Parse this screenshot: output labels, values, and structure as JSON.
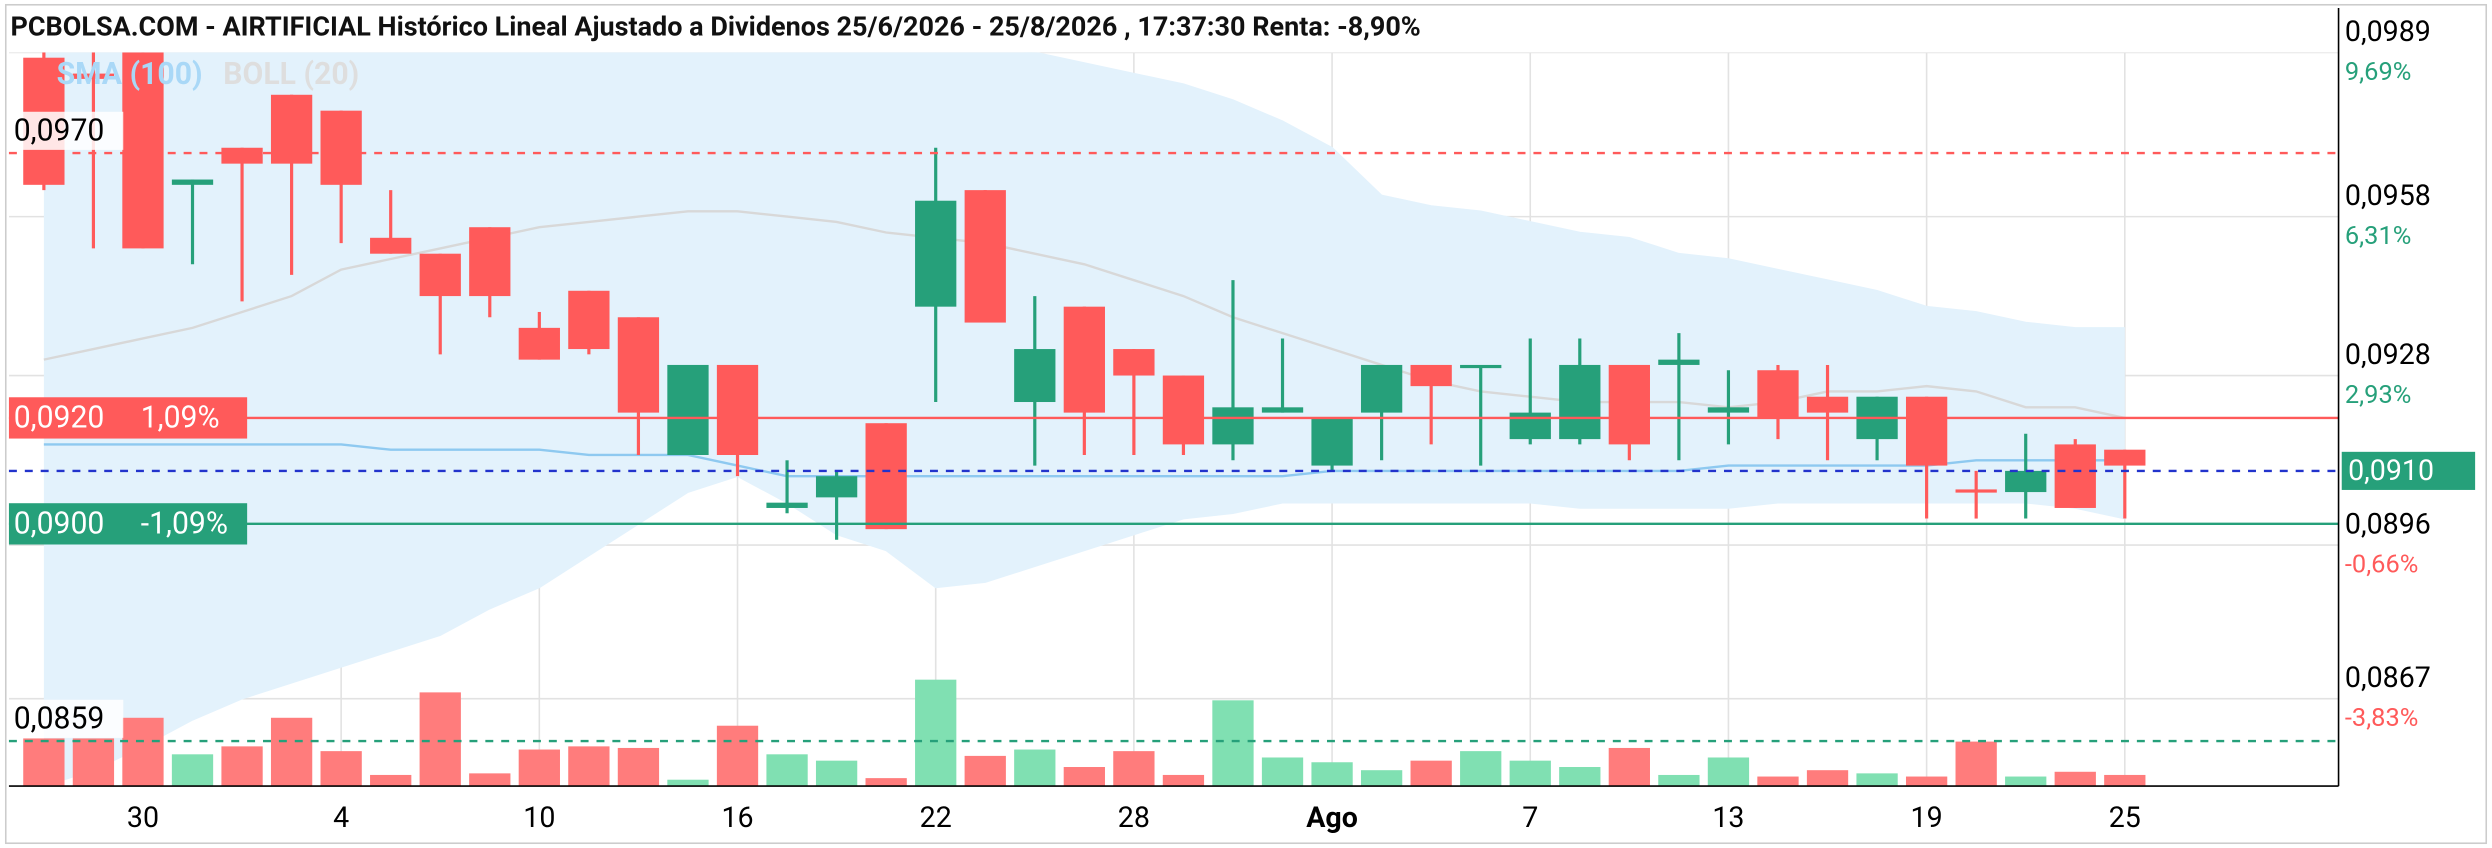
{
  "chart_data": {
    "type": "candlestick",
    "title": "PCBOLSA.COM - AIRTIFICIAL Histórico Lineal Ajustado a Dividenos 25/6/2026 - 25/8/2026 , 17:37:30 Renta: -8,90%",
    "categories": [
      null,
      null,
      "30",
      null,
      null,
      null,
      "4",
      null,
      null,
      null,
      "10",
      null,
      null,
      null,
      "16",
      null,
      null,
      null,
      "22",
      null,
      null,
      null,
      "28",
      null,
      null,
      null,
      "Ago",
      null,
      null,
      null,
      "7",
      null,
      null,
      null,
      "13",
      null,
      null,
      null,
      "19",
      null,
      null,
      null,
      "25"
    ],
    "open": [
      0.0988,
      0.0985,
      0.0989,
      0.0964,
      0.0971,
      0.0981,
      0.0978,
      0.0954,
      0.0951,
      0.0956,
      0.0937,
      0.0944,
      0.0939,
      0.0913,
      0.093,
      0.0903,
      0.0905,
      0.0919,
      0.0941,
      0.0963,
      0.0923,
      0.0941,
      0.0933,
      0.0928,
      0.0915,
      0.0921,
      0.0911,
      0.0921,
      0.093,
      0.09295,
      0.0916,
      0.0916,
      0.093,
      0.093,
      0.0921,
      0.0929,
      0.0924,
      0.0916,
      0.0924,
      0.09065,
      0.0906,
      0.0915,
      0.0914
    ],
    "high": [
      0.0989,
      0.0989,
      0.0989,
      0.0965,
      0.0971,
      0.0981,
      0.0978,
      0.0963,
      0.0951,
      0.0956,
      0.094,
      0.0944,
      0.0939,
      0.093,
      0.093,
      0.0912,
      0.091,
      0.0919,
      0.0971,
      0.0963,
      0.0943,
      0.0941,
      0.0933,
      0.0928,
      0.0946,
      0.0935,
      0.092,
      0.093,
      0.093,
      0.093,
      0.0935,
      0.0935,
      0.093,
      0.0936,
      0.0929,
      0.093,
      0.093,
      0.0924,
      0.0924,
      0.091,
      0.0917,
      0.0916,
      0.0914
    ],
    "low": [
      0.0963,
      0.0952,
      0.0952,
      0.0949,
      0.0942,
      0.0947,
      0.0953,
      0.0951,
      0.0932,
      0.0939,
      0.0931,
      0.0932,
      0.0913,
      0.0913,
      0.0909,
      0.0902,
      0.0897,
      0.0899,
      0.0923,
      0.0938,
      0.0911,
      0.0913,
      0.0913,
      0.0913,
      0.0912,
      0.0921,
      0.091,
      0.0912,
      0.0915,
      0.0911,
      0.0915,
      0.0915,
      0.0912,
      0.0912,
      0.0915,
      0.0916,
      0.0912,
      0.0912,
      0.0901,
      0.0901,
      0.0901,
      0.0903,
      0.0901
    ],
    "close": [
      0.0964,
      0.0984,
      0.0952,
      0.0965,
      0.0968,
      0.0968,
      0.0964,
      0.0951,
      0.0943,
      0.0943,
      0.0931,
      0.0933,
      0.0921,
      0.093,
      0.0913,
      0.0904,
      0.0909,
      0.0899,
      0.0961,
      0.0938,
      0.0933,
      0.0921,
      0.0928,
      0.0915,
      0.0922,
      0.0922,
      0.092,
      0.093,
      0.0926,
      0.093,
      0.0921,
      0.093,
      0.0915,
      0.0931,
      0.0922,
      0.092,
      0.0921,
      0.0924,
      0.0911,
      0.0906,
      0.091,
      0.0903,
      0.0911
    ],
    "volume": [
      30,
      30,
      43,
      20,
      25,
      43,
      22,
      7,
      59,
      8,
      23,
      25,
      24,
      4,
      38,
      20,
      16,
      5,
      67,
      19,
      23,
      12,
      22,
      7,
      54,
      18,
      15,
      10,
      16,
      22,
      16,
      12,
      24,
      7,
      18,
      6,
      10,
      8,
      6,
      28,
      6,
      9,
      7
    ],
    "up_color": "#26a07a",
    "down_color": "#ff5a5a",
    "volume_up_color": "#80e0b2",
    "volume_down_color": "#ff7c7c",
    "overlays": [
      {
        "name": "SMA (100)",
        "color": "#8ec9f0",
        "values": [
          0.0915,
          0.0915,
          0.0915,
          0.0915,
          0.0915,
          0.0915,
          0.0915,
          0.0914,
          0.0914,
          0.0914,
          0.0914,
          0.0913,
          0.0913,
          0.0913,
          0.0911,
          0.0909,
          0.0909,
          0.0909,
          0.0909,
          0.0909,
          0.0909,
          0.0909,
          0.0909,
          0.0909,
          0.0909,
          0.0909,
          0.091,
          0.091,
          0.091,
          0.091,
          0.091,
          0.091,
          0.091,
          0.091,
          0.0911,
          0.0911,
          0.0911,
          0.0911,
          0.0911,
          0.0912,
          0.0912,
          0.0912,
          0.0912
        ]
      },
      {
        "name": "BOLL (20)",
        "color": "#d8d8d8",
        "fill": "#e3f2fc",
        "upper": [
          0.0995,
          0.0995,
          0.0995,
          0.0995,
          0.0995,
          0.0995,
          0.0995,
          0.0995,
          0.0995,
          0.0995,
          0.0995,
          0.0995,
          0.0995,
          0.0995,
          0.0995,
          0.0995,
          0.0995,
          0.0995,
          0.0992,
          0.099,
          0.0989,
          0.0987,
          0.0985,
          0.0983,
          0.098,
          0.0976,
          0.0971,
          0.0962,
          0.096,
          0.0959,
          0.0957,
          0.0955,
          0.0954,
          0.0951,
          0.095,
          0.0948,
          0.0946,
          0.0944,
          0.0941,
          0.094,
          0.0938,
          0.0937,
          0.0937
        ],
        "middle": [
          0.0931,
          0.0933,
          0.0935,
          0.0937,
          0.094,
          0.0943,
          0.0948,
          0.095,
          0.0952,
          0.0954,
          0.0956,
          0.0957,
          0.0958,
          0.0959,
          0.0959,
          0.0958,
          0.0957,
          0.0955,
          0.0954,
          0.0953,
          0.0951,
          0.0949,
          0.0946,
          0.0943,
          0.0939,
          0.0936,
          0.0933,
          0.093,
          0.0927,
          0.0925,
          0.0924,
          0.0923,
          0.0923,
          0.0923,
          0.0922,
          0.0923,
          0.0925,
          0.0925,
          0.0926,
          0.0925,
          0.0922,
          0.0922,
          0.092
        ],
        "lower": [
          0.08505,
          0.08535,
          0.0858,
          0.0863,
          0.0867,
          0.087,
          0.0873,
          0.0876,
          0.0879,
          0.0884,
          0.0888,
          0.0894,
          0.09,
          0.0906,
          0.0909,
          0.0904,
          0.0898,
          0.0895,
          0.0888,
          0.0889,
          0.0892,
          0.0895,
          0.0898,
          0.0901,
          0.0902,
          0.0904,
          0.0904,
          0.0904,
          0.0904,
          0.0904,
          0.0904,
          0.0903,
          0.0903,
          0.0903,
          0.0903,
          0.0904,
          0.0904,
          0.0904,
          0.0904,
          0.0904,
          0.0904,
          0.0903,
          0.0901
        ]
      }
    ],
    "ylim": [
      0.08505,
      0.0989
    ],
    "yticks": [
      {
        "value": 0.0989,
        "label": "0,0989"
      },
      {
        "value": 0.0958,
        "label": "0,0958"
      },
      {
        "value": 0.0928,
        "label": "0,0928"
      },
      {
        "value": 0.0896,
        "label": "0,0896"
      },
      {
        "value": 0.0867,
        "label": "0,0867"
      }
    ],
    "ytick_changes": [
      "9,69%",
      "6,31%",
      "2,93%",
      "-0,66%",
      "-3,83%"
    ],
    "ytick_change_colors": [
      "#26a07a",
      "#26a07a",
      "#26a07a",
      "#ff5a5a",
      "#ff5a5a"
    ],
    "grid": true,
    "levels": [
      {
        "value": 0.097,
        "label": "0,0970",
        "color": "#ff5a5a",
        "dashed": true,
        "side": "left",
        "boxed": false
      },
      {
        "value": 0.092,
        "label": "0,0920",
        "pct": "1,09%",
        "color": "#ff5a5a",
        "dashed": false,
        "side": "left",
        "boxed": true
      },
      {
        "value": 0.091,
        "label": "0,0910",
        "color": "#2233cc",
        "box_color": "#26a07a",
        "dashed": true,
        "side": "right",
        "boxed": true
      },
      {
        "value": 0.09,
        "label": "0,0900",
        "pct": "-1,09%",
        "color": "#26a07a",
        "dashed": false,
        "side": "left",
        "boxed": true
      },
      {
        "value": 0.0859,
        "label": "0,0859",
        "color": "#26a07a",
        "dashed": true,
        "side": "left",
        "boxed": false
      }
    ]
  }
}
